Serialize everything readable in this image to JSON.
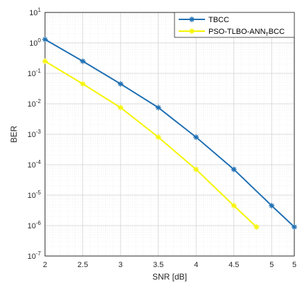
{
  "chart_data": {
    "type": "line",
    "xlabel": "SNR [dB]",
    "ylabel": "BER",
    "xlim": [
      2,
      5.3
    ],
    "ylim_exp": [
      -7,
      1
    ],
    "y_scale": "log10",
    "x_ticks": [
      "2",
      "2.5",
      "3",
      "3.5",
      "4",
      "4.5",
      "5",
      "5"
    ],
    "x_tick_values": [
      2,
      2.5,
      3,
      3.5,
      4,
      4.5,
      5,
      5.3
    ],
    "y_tick_exponents": [
      1,
      0,
      -1,
      -2,
      -3,
      -4,
      -5,
      -6,
      -7
    ],
    "y_tick_base": "10",
    "grid": true,
    "minor_grid": true,
    "legend_position": "top-right",
    "series": [
      {
        "name": "TBCC",
        "color": "#1f6fb2",
        "marker": "asterisk",
        "x": [
          2,
          2.5,
          3,
          3.5,
          4,
          4.5,
          5,
          5.3
        ],
        "y": [
          1.3,
          0.25,
          0.045,
          0.0075,
          0.0008,
          7e-05,
          4.5e-06,
          9e-07
        ]
      },
      {
        "name": "PSO-TLBO-ANN_TBCC",
        "color": "#f5f500",
        "marker": "asterisk",
        "x": [
          2,
          2.5,
          3,
          3.5,
          4,
          4.5,
          4.8
        ],
        "y": [
          0.25,
          0.045,
          0.0075,
          0.0008,
          7e-05,
          4.5e-06,
          9e-07
        ]
      }
    ],
    "legend": {
      "entries": [
        "TBCC",
        "PSO-TLBO-ANN"
      ],
      "subscript": "T",
      "suffix": "BCC"
    }
  }
}
